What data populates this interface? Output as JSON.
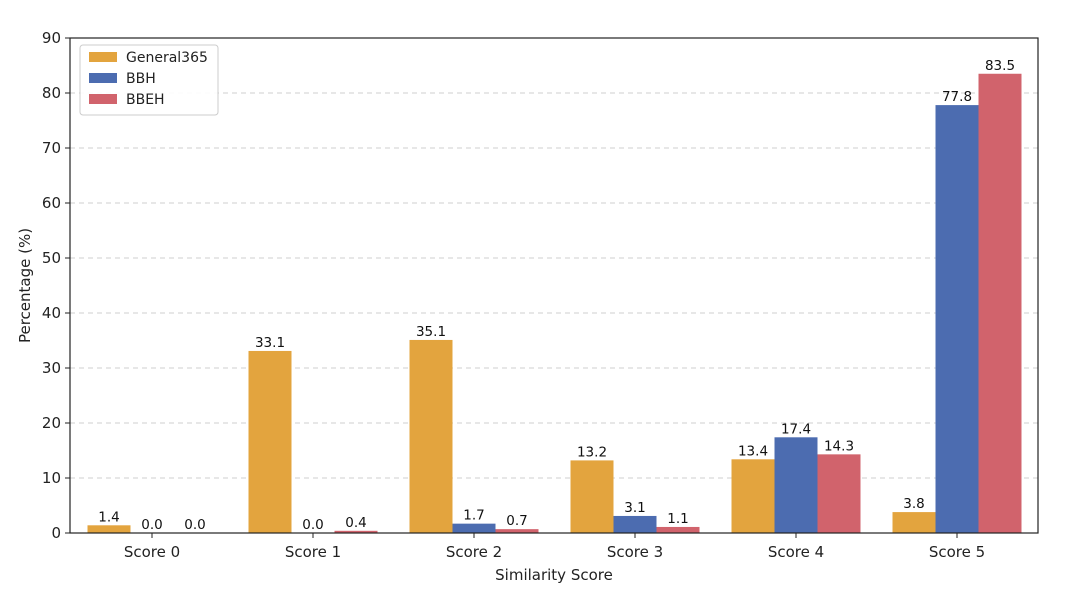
{
  "chart_data": {
    "type": "bar",
    "categories": [
      "Score 0",
      "Score 1",
      "Score 2",
      "Score 3",
      "Score 4",
      "Score 5"
    ],
    "series": [
      {
        "name": "General365",
        "color": "#E3A43E",
        "values": [
          1.4,
          33.1,
          35.1,
          13.2,
          13.4,
          3.8
        ]
      },
      {
        "name": "BBH",
        "color": "#4C6CB0",
        "values": [
          0.0,
          0.0,
          1.7,
          3.1,
          17.4,
          77.8
        ]
      },
      {
        "name": "BBEH",
        "color": "#D1636C",
        "values": [
          0.0,
          0.4,
          0.7,
          1.1,
          14.3,
          83.5
        ]
      }
    ],
    "xlabel": "Similarity Score",
    "ylabel": "Percentage (%)",
    "ylim": [
      0,
      90
    ],
    "yticks": [
      0,
      10,
      20,
      30,
      40,
      50,
      60,
      70,
      80,
      90
    ],
    "grid": "horizontal dashed",
    "legend_position": "top-left"
  }
}
